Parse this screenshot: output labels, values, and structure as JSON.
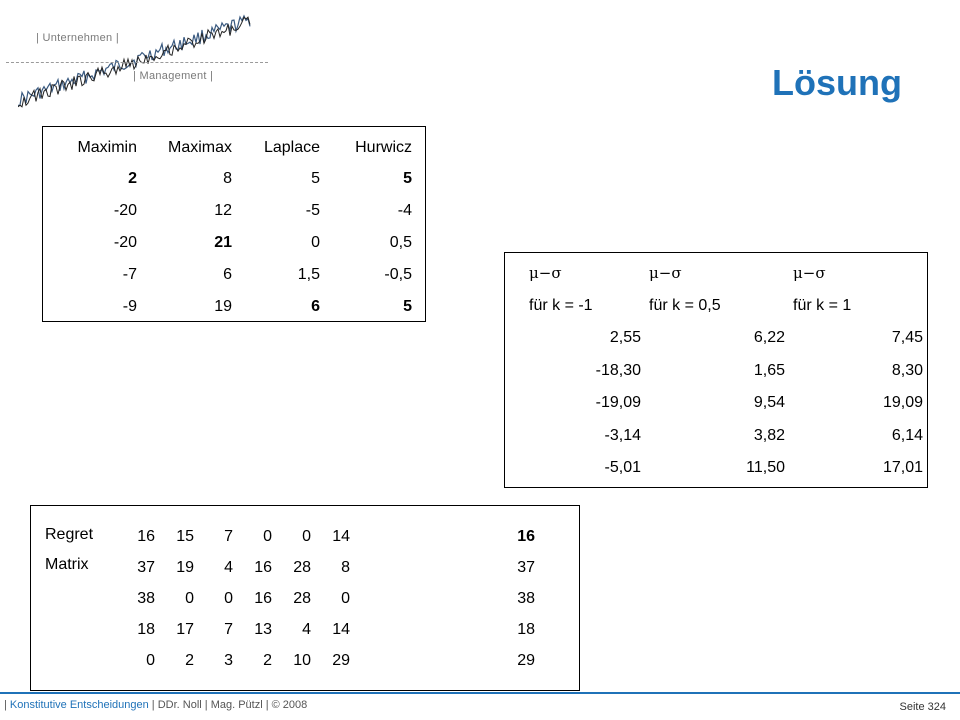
{
  "header": {
    "logo_top": "| Unternehmen |",
    "logo_bottom": "| Management |",
    "title": "Lösung"
  },
  "criteria_table": {
    "headers": [
      "Maximin",
      "Maximax",
      "Laplace",
      "Hurwicz"
    ],
    "rows": [
      [
        "2",
        "8",
        "5",
        "5"
      ],
      [
        "-20",
        "12",
        "-5",
        "-4"
      ],
      [
        "-20",
        "21",
        "0",
        "0,5"
      ],
      [
        "-7",
        "6",
        "1,5",
        "-0,5"
      ],
      [
        "-9",
        "19",
        "6",
        "5"
      ]
    ],
    "bold_cells": [
      [
        0,
        0
      ],
      [
        0,
        3
      ],
      [
        2,
        1
      ],
      [
        4,
        2
      ],
      [
        4,
        3
      ]
    ]
  },
  "mu_sigma_table": {
    "symbol": "μ−σ",
    "headers": [
      "für k = -1",
      "für k = 0,5",
      "für k = 1"
    ],
    "rows": [
      [
        "2,55",
        "6,22",
        "7,45"
      ],
      [
        "-18,30",
        "1,65",
        "8,30"
      ],
      [
        "-19,09",
        "9,54",
        "19,09"
      ],
      [
        "-3,14",
        "3,82",
        "6,14"
      ],
      [
        "-5,01",
        "11,50",
        "17,01"
      ]
    ]
  },
  "regret_matrix": {
    "label_line1": "Regret",
    "label_line2": "Matrix",
    "rows": [
      [
        "16",
        "15",
        "7",
        "0",
        "0",
        "14"
      ],
      [
        "37",
        "19",
        "4",
        "16",
        "28",
        "8"
      ],
      [
        "38",
        "0",
        "0",
        "16",
        "28",
        "0"
      ],
      [
        "18",
        "17",
        "7",
        "13",
        "4",
        "14"
      ],
      [
        "0",
        "2",
        "3",
        "2",
        "10",
        "29"
      ]
    ],
    "row_max": [
      "16",
      "37",
      "38",
      "18",
      "29"
    ],
    "bold_row_max_index": 0
  },
  "footer": {
    "prefix": "| ",
    "course": "Konstitutive Entscheidungen",
    "authors": " | DDr. Noll | Mag. Pützl | © 2008",
    "page": "Seite 324"
  },
  "colors": {
    "accent": "#1f72b8"
  }
}
